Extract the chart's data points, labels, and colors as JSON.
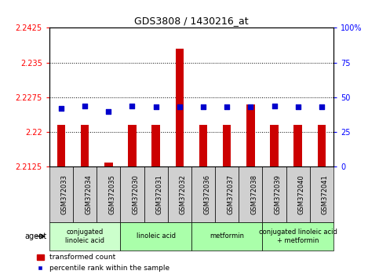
{
  "title": "GDS3808 / 1430216_at",
  "samples": [
    "GSM372033",
    "GSM372034",
    "GSM372035",
    "GSM372030",
    "GSM372031",
    "GSM372032",
    "GSM372036",
    "GSM372037",
    "GSM372038",
    "GSM372039",
    "GSM372040",
    "GSM372041"
  ],
  "transformed_count": [
    2.2215,
    2.2215,
    2.2135,
    2.2215,
    2.2215,
    2.238,
    2.2215,
    2.2215,
    2.226,
    2.2215,
    2.2215,
    2.2215
  ],
  "percentile_rank": [
    42,
    44,
    40,
    44,
    43,
    43,
    43,
    43,
    43,
    44,
    43,
    43
  ],
  "ymin": 2.2125,
  "ymax": 2.2425,
  "yticks": [
    2.2125,
    2.22,
    2.2275,
    2.235,
    2.2425
  ],
  "y2ticks": [
    0,
    25,
    50,
    75,
    100
  ],
  "y2min": 0,
  "y2max": 100,
  "bar_color": "#cc0000",
  "dot_color": "#0000cc",
  "agent_groups": [
    {
      "label": "conjugated\nlinoleic acid",
      "start": 0,
      "end": 3,
      "color": "#ccffcc"
    },
    {
      "label": "linoleic acid",
      "start": 3,
      "end": 6,
      "color": "#aaffaa"
    },
    {
      "label": "metformin",
      "start": 6,
      "end": 9,
      "color": "#aaffaa"
    },
    {
      "label": "conjugated linoleic acid\n+ metformin",
      "start": 9,
      "end": 12,
      "color": "#aaffaa"
    }
  ],
  "xlabel_agent": "agent",
  "legend_bar": "transformed count",
  "legend_dot": "percentile rank within the sample",
  "plot_bg": "#ffffff",
  "tick_bg": "#d0d0d0",
  "fig_bg": "#ffffff"
}
